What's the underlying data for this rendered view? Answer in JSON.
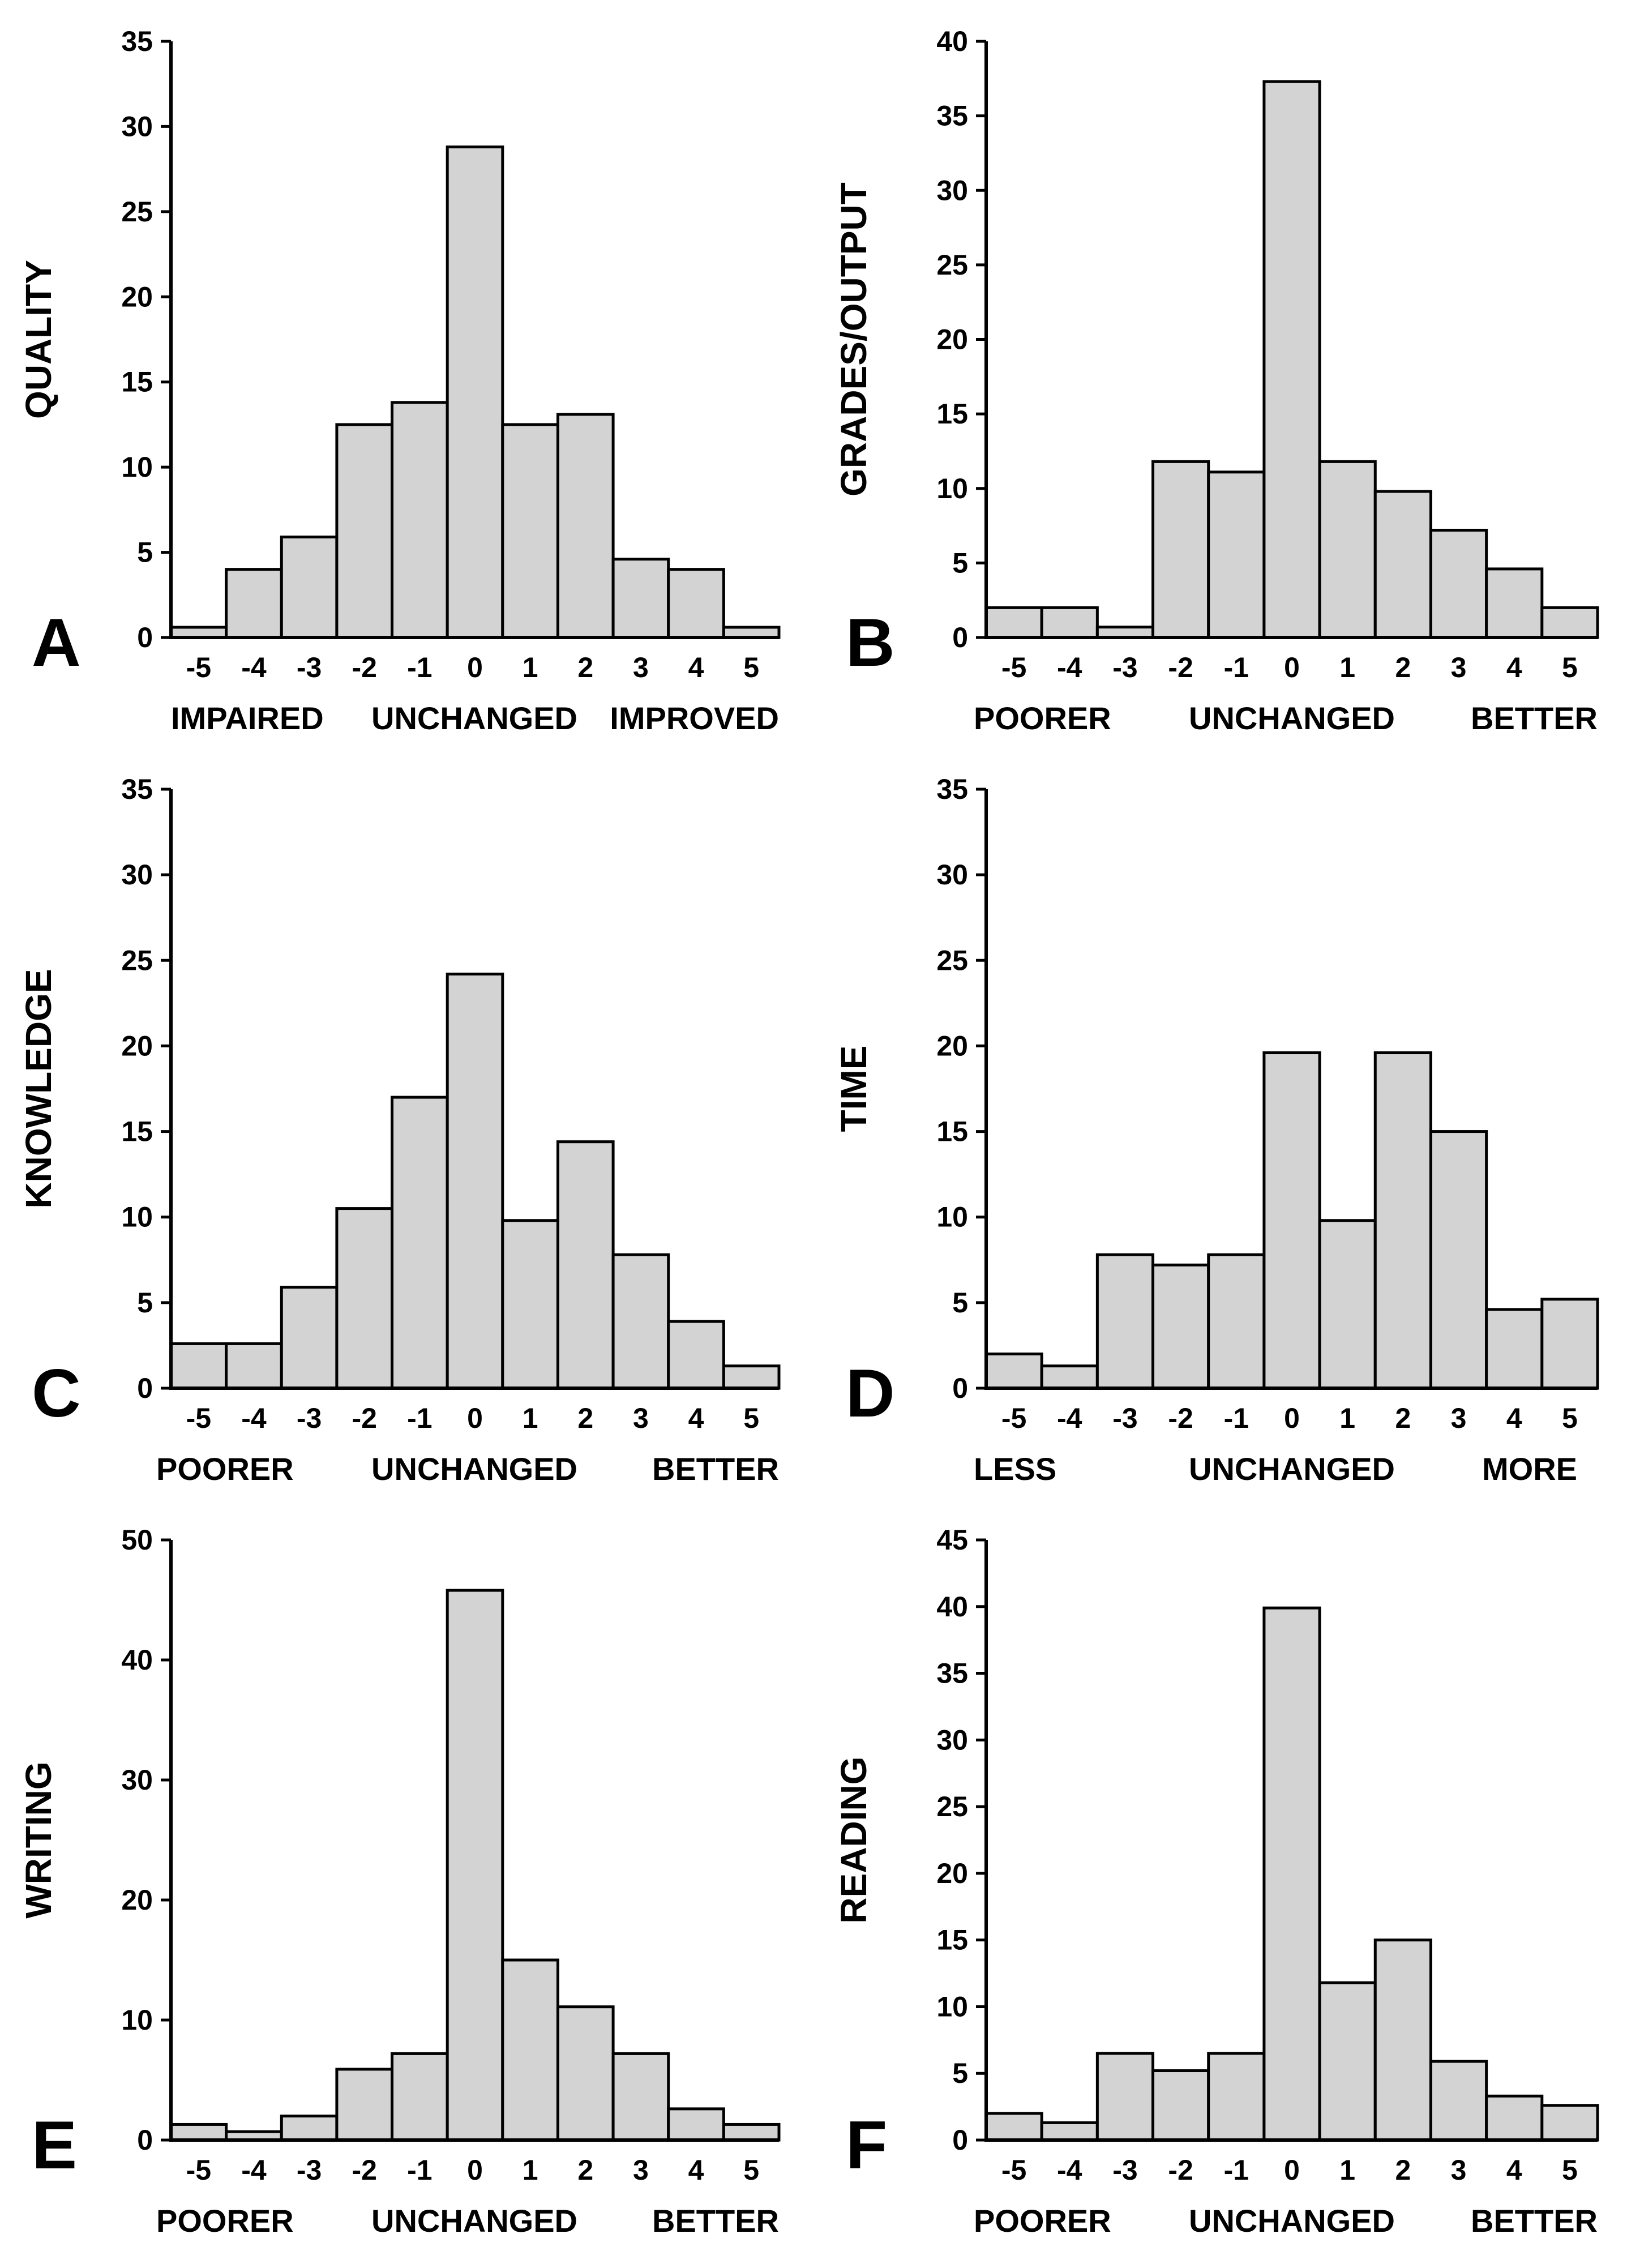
{
  "figure": {
    "bar_color": "#d3d3d3",
    "edge_color": "#000000"
  },
  "chart_data": [
    {
      "type": "bar",
      "panel": "A",
      "ylabel": "QUALITY",
      "categories": [
        "-5",
        "-4",
        "-3",
        "-2",
        "-1",
        "0",
        "1",
        "2",
        "3",
        "4",
        "5"
      ],
      "values": [
        0.6,
        4,
        5.9,
        12.5,
        13.8,
        28.8,
        12.5,
        13.1,
        4.6,
        4,
        0.6
      ],
      "ylim": [
        0,
        35
      ],
      "yticks": [
        0,
        5,
        10,
        15,
        20,
        25,
        30,
        35
      ],
      "bottom_labels": [
        "IMPAIRED",
        "UNCHANGED",
        "IMPROVED"
      ]
    },
    {
      "type": "bar",
      "panel": "B",
      "ylabel": "GRADES/OUTPUT",
      "categories": [
        "-5",
        "-4",
        "-3",
        "-2",
        "-1",
        "0",
        "1",
        "2",
        "3",
        "4",
        "5"
      ],
      "values": [
        2,
        2,
        0.7,
        11.8,
        11.1,
        37.3,
        11.8,
        9.8,
        7.2,
        4.6,
        2
      ],
      "ylim": [
        0,
        40
      ],
      "yticks": [
        0,
        5,
        10,
        15,
        20,
        25,
        30,
        35,
        40
      ],
      "bottom_labels": [
        "POORER",
        "UNCHANGED",
        "BETTER"
      ]
    },
    {
      "type": "bar",
      "panel": "C",
      "ylabel": "KNOWLEDGE",
      "categories": [
        "-5",
        "-4",
        "-3",
        "-2",
        "-1",
        "0",
        "1",
        "2",
        "3",
        "4",
        "5"
      ],
      "values": [
        2.6,
        2.6,
        5.9,
        10.5,
        17,
        24.2,
        9.8,
        14.4,
        7.8,
        3.9,
        1.3
      ],
      "ylim": [
        0,
        35
      ],
      "yticks": [
        0,
        5,
        10,
        15,
        20,
        25,
        30,
        35
      ],
      "bottom_labels": [
        "POORER",
        "UNCHANGED",
        "BETTER"
      ]
    },
    {
      "type": "bar",
      "panel": "D",
      "ylabel": "TIME",
      "categories": [
        "-5",
        "-4",
        "-3",
        "-2",
        "-1",
        "0",
        "1",
        "2",
        "3",
        "4",
        "5"
      ],
      "values": [
        2,
        1.3,
        7.8,
        7.2,
        7.8,
        19.6,
        9.8,
        19.6,
        15,
        4.6,
        5.2
      ],
      "ylim": [
        0,
        35
      ],
      "yticks": [
        0,
        5,
        10,
        15,
        20,
        25,
        30,
        35
      ],
      "bottom_labels": [
        "LESS",
        "UNCHANGED",
        "MORE"
      ]
    },
    {
      "type": "bar",
      "panel": "E",
      "ylabel": "WRITING",
      "categories": [
        "-5",
        "-4",
        "-3",
        "-2",
        "-1",
        "0",
        "1",
        "2",
        "3",
        "4",
        "5"
      ],
      "values": [
        1.3,
        0.7,
        2,
        5.9,
        7.2,
        45.8,
        15,
        11.1,
        7.2,
        2.6,
        1.3
      ],
      "ylim": [
        0,
        50
      ],
      "yticks": [
        0,
        10,
        20,
        30,
        40,
        50
      ],
      "bottom_labels": [
        "POORER",
        "UNCHANGED",
        "BETTER"
      ]
    },
    {
      "type": "bar",
      "panel": "F",
      "ylabel": "READING",
      "categories": [
        "-5",
        "-4",
        "-3",
        "-2",
        "-1",
        "0",
        "1",
        "2",
        "3",
        "4",
        "5"
      ],
      "values": [
        2,
        1.3,
        6.5,
        5.2,
        6.5,
        39.9,
        11.8,
        15,
        5.9,
        3.3,
        2.6
      ],
      "ylim": [
        0,
        45
      ],
      "yticks": [
        0,
        5,
        10,
        15,
        20,
        25,
        30,
        35,
        40,
        45
      ],
      "bottom_labels": [
        "POORER",
        "UNCHANGED",
        "BETTER"
      ]
    }
  ]
}
